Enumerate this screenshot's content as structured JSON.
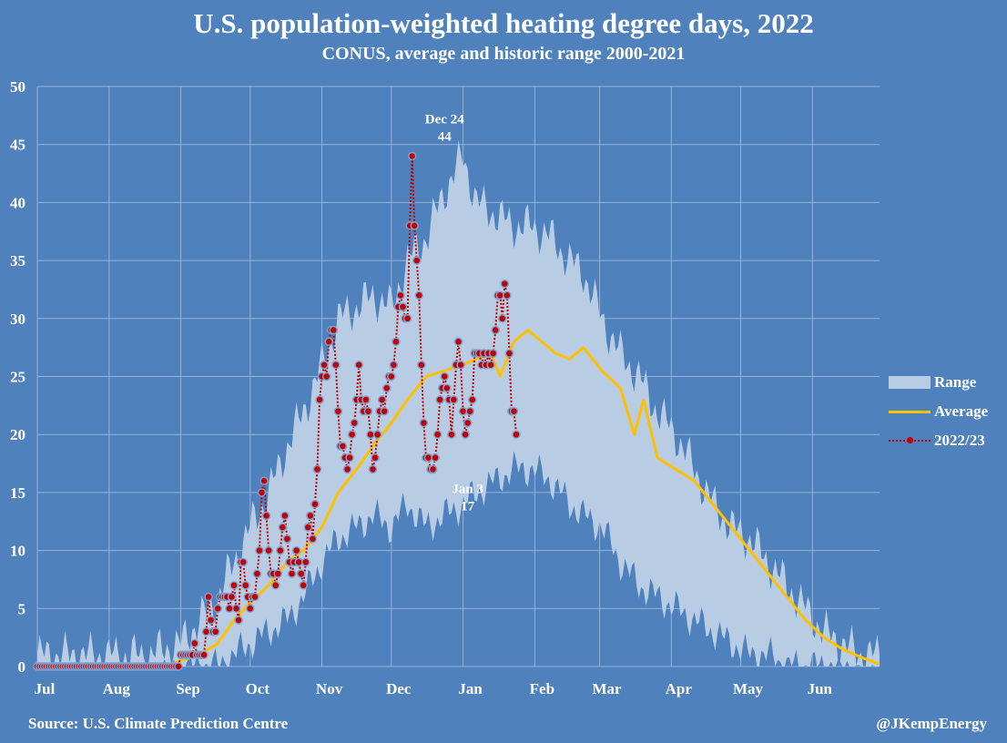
{
  "chart_data": {
    "type": "area",
    "title": "U.S. population-weighted heating degree days, 2022",
    "subtitle": "CONUS, average and historic range 2000-2021",
    "xlabel": "",
    "ylabel": "",
    "ylim": [
      0,
      50
    ],
    "yticks": [
      0,
      5,
      10,
      15,
      20,
      25,
      30,
      35,
      40,
      45,
      50
    ],
    "grid": true,
    "x_months": [
      "Jul",
      "Aug",
      "Sep",
      "Oct",
      "Nov",
      "Dec",
      "Jan",
      "Feb",
      "Mar",
      "Apr",
      "May",
      "Jun"
    ],
    "x_domain_days": [
      0,
      364
    ],
    "legend_position": "right",
    "legend": [
      "Range",
      "Average",
      "2022/23"
    ],
    "colors": {
      "range": "#b8cce4",
      "average": "#ffc000",
      "series": "#c00000",
      "background": "#4f81bd",
      "grid": "#95b3d7"
    },
    "annotations": [
      {
        "label": "Dec 24",
        "value": "44",
        "day": 176,
        "y": 44,
        "position": "above"
      },
      {
        "label": "Jan 3",
        "value": "17",
        "day": 186,
        "y": 17,
        "position": "below"
      }
    ],
    "series": [
      {
        "name": "Range",
        "kind": "band",
        "knots_day": [
          0,
          15,
          31,
          47,
          62,
          70,
          78,
          85,
          92,
          100,
          108,
          115,
          123,
          130,
          138,
          145,
          153,
          160,
          168,
          176,
          184,
          190,
          198,
          206,
          214,
          222,
          230,
          236,
          244,
          252,
          260,
          268,
          276,
          284,
          292,
          300,
          308,
          316,
          324,
          332,
          340,
          348,
          356,
          364
        ],
        "upper": [
          1,
          1,
          1,
          1,
          2,
          4,
          6,
          9,
          12,
          15,
          19,
          22,
          26,
          30,
          31,
          32,
          31,
          35,
          37,
          41,
          44,
          40,
          39,
          38,
          38,
          37,
          35,
          34,
          30,
          27,
          25,
          22,
          20,
          17,
          14,
          12,
          11,
          9,
          7,
          5,
          3,
          2,
          1,
          1
        ],
        "lower": [
          0,
          0,
          0,
          0,
          0,
          0,
          0,
          1,
          2,
          3,
          4,
          6,
          9,
          11,
          12,
          13,
          12,
          14,
          12,
          13,
          14,
          15,
          16,
          17,
          17,
          16,
          14,
          13,
          12,
          9,
          7,
          6,
          5,
          4,
          3,
          2,
          1,
          1,
          0,
          0,
          0,
          0,
          0,
          0
        ]
      },
      {
        "name": "Average",
        "kind": "line",
        "knots_day": [
          0,
          31,
          56,
          62,
          70,
          78,
          85,
          92,
          100,
          108,
          115,
          123,
          130,
          138,
          145,
          153,
          160,
          168,
          176,
          184,
          190,
          196,
          200,
          206,
          212,
          218,
          224,
          230,
          236,
          244,
          252,
          258,
          262,
          268,
          276,
          284,
          292,
          300,
          308,
          316,
          324,
          332,
          340,
          348,
          356,
          364
        ],
        "values": [
          0,
          0,
          0,
          0.5,
          1,
          2,
          4,
          5.5,
          7,
          9,
          10,
          12,
          15,
          17,
          19,
          21,
          23,
          25,
          25.5,
          26,
          26.5,
          27,
          25,
          28,
          29,
          28,
          27,
          26.5,
          27.5,
          25.5,
          24,
          20,
          23,
          18,
          17,
          16,
          14,
          12,
          10,
          8,
          6,
          4,
          2.5,
          1.5,
          0.8,
          0.2
        ]
      },
      {
        "name": "2022/23",
        "kind": "line-markers",
        "start_day": 0,
        "values": [
          0,
          0,
          0,
          0,
          0,
          0,
          0,
          0,
          0,
          0,
          0,
          0,
          0,
          0,
          0,
          0,
          0,
          0,
          0,
          0,
          0,
          0,
          0,
          0,
          0,
          0,
          0,
          0,
          0,
          0,
          0,
          0,
          0,
          0,
          0,
          0,
          0,
          0,
          0,
          0,
          0,
          0,
          0,
          0,
          0,
          0,
          0,
          0,
          0,
          0,
          0,
          0,
          0,
          0,
          0,
          0,
          0,
          0,
          0,
          0,
          0,
          0,
          1,
          1,
          1,
          1,
          1,
          1,
          2,
          1,
          1,
          1,
          1,
          3,
          6,
          4,
          3,
          3,
          5,
          6,
          6,
          6,
          6,
          5,
          6,
          7,
          5,
          4,
          9,
          9,
          7,
          6,
          5,
          6,
          6,
          8,
          10,
          15,
          16,
          13,
          10,
          8,
          8,
          7,
          8,
          10,
          12,
          13,
          11,
          9,
          8,
          9,
          10,
          9,
          8,
          7,
          9,
          12,
          13,
          11,
          14,
          17,
          23,
          25,
          26,
          25,
          28,
          29,
          29,
          26,
          22,
          19,
          19,
          18,
          17,
          18,
          20,
          21,
          23,
          26,
          23,
          22,
          23,
          22,
          20,
          17,
          18,
          20,
          22,
          23,
          22,
          24,
          25,
          25,
          26,
          28,
          31,
          32,
          31,
          30,
          30,
          38,
          44,
          38,
          35,
          32,
          26,
          21,
          18,
          18,
          17,
          17,
          18,
          20,
          23,
          24,
          25,
          24,
          23,
          20,
          23,
          26,
          28,
          26,
          22,
          20,
          21,
          22,
          23,
          27,
          27,
          27,
          26,
          27,
          26,
          27,
          26,
          27,
          29,
          32,
          32,
          30,
          33,
          32,
          27,
          22,
          22,
          20
        ]
      }
    ]
  },
  "footer": {
    "source": "Source: U.S. Climate Prediction Centre",
    "credit": "@JKempEnergy"
  }
}
